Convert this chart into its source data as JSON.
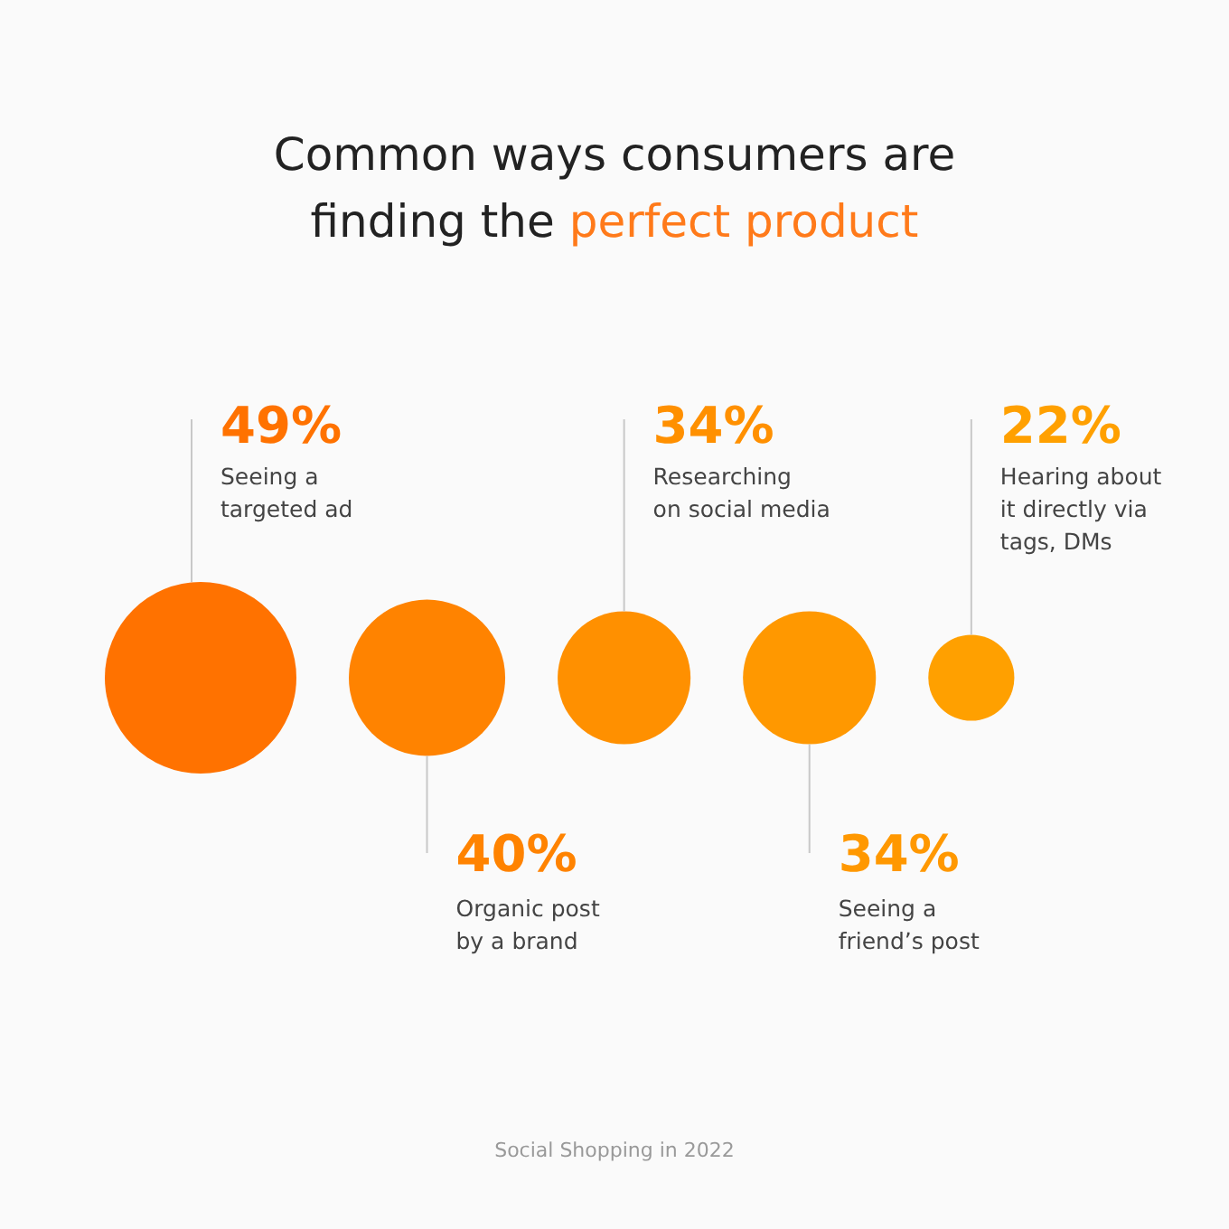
{
  "chart_data": {
    "type": "other",
    "title": "Common ways consumers are finding the perfect product",
    "categories": [
      "Seeing a\ntargeted ad",
      "Organic post\nby a brand",
      "Researching\non social media",
      "Seeing a\nfriend’s post",
      "Hearing about\nit directly via\ntags, DMs"
    ],
    "values": [
      49,
      40,
      34,
      34,
      22
    ],
    "value_labels": [
      "49%",
      "40%",
      "34%",
      "34%",
      "22%"
    ],
    "colors": [
      "#ff7200",
      "#ff8300",
      "#ff9000",
      "#ff9800",
      "#ffa000"
    ],
    "annotations": [
      "Social Shopping in 2022"
    ]
  }
}
